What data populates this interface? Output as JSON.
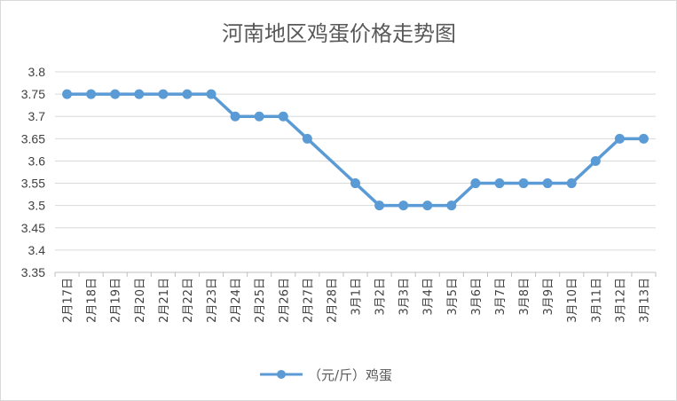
{
  "chart_data": {
    "type": "line",
    "title": "河南地区鸡蛋价格走势图",
    "xlabel": "",
    "ylabel": "",
    "categories": [
      "2月17日",
      "2月18日",
      "2月19日",
      "2月20日",
      "2月21日",
      "2月22日",
      "2月23日",
      "2月24日",
      "2月25日",
      "2月26日",
      "2月27日",
      "2月28日",
      "3月1日",
      "3月2日",
      "3月3日",
      "3月4日",
      "3月5日",
      "3月6日",
      "3月7日",
      "3月8日",
      "3月9日",
      "3月10日",
      "3月11日",
      "3月12日",
      "3月13日"
    ],
    "series": [
      {
        "name": "（元/斤）鸡蛋",
        "color": "#5b9bd5",
        "values": [
          3.75,
          3.75,
          3.75,
          3.75,
          3.75,
          3.75,
          3.75,
          3.7,
          3.7,
          3.7,
          3.65,
          null,
          3.55,
          3.5,
          3.5,
          3.5,
          3.5,
          3.55,
          3.55,
          3.55,
          3.55,
          3.55,
          3.6,
          3.65,
          3.65
        ]
      }
    ],
    "ylim": [
      3.35,
      3.8
    ],
    "yticks": [
      "3.8",
      "3.75",
      "3.7",
      "3.65",
      "3.6",
      "3.55",
      "3.5",
      "3.45",
      "3.4",
      "3.35"
    ],
    "grid": true,
    "legend": "bottom"
  }
}
